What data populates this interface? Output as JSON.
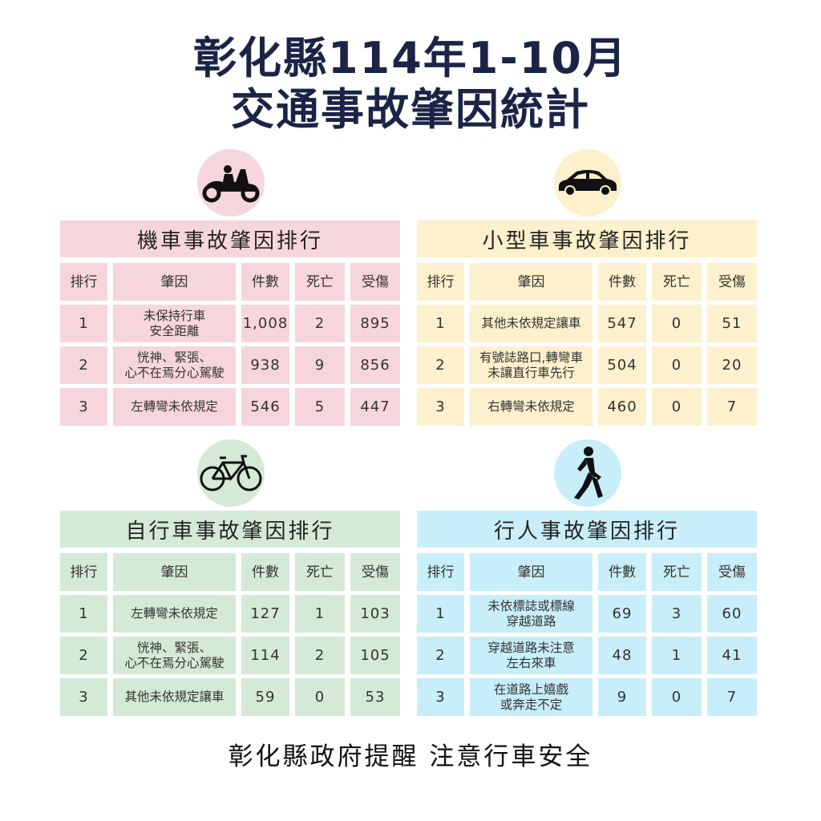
{
  "title": {
    "line1": "彰化縣114年1-10月",
    "line2": "交通事故肇因統計"
  },
  "headers": [
    "排行",
    "肇因",
    "件數",
    "死亡",
    "受傷"
  ],
  "colors": {
    "title": "#1b2447",
    "motorcycle": "#f6d6dc",
    "car": "#fdf0cc",
    "bicycle": "#d4ead6",
    "pedestrian": "#c8eef9"
  },
  "tables": [
    {
      "icon": "motorcycle-icon",
      "title": "機車事故肇因排行",
      "rows": [
        {
          "rank": "1",
          "cause": "未保持行車\n安全距離",
          "count": "1,008",
          "deaths": "2",
          "injuries": "895"
        },
        {
          "rank": "2",
          "cause": "恍神、緊張、\n心不在焉分心駕駛",
          "count": "938",
          "deaths": "9",
          "injuries": "856"
        },
        {
          "rank": "3",
          "cause": "左轉彎未依規定",
          "count": "546",
          "deaths": "5",
          "injuries": "447"
        }
      ]
    },
    {
      "icon": "car-icon",
      "title": "小型車事故肇因排行",
      "rows": [
        {
          "rank": "1",
          "cause": "其他未依規定讓車",
          "count": "547",
          "deaths": "0",
          "injuries": "51"
        },
        {
          "rank": "2",
          "cause": "有號誌路口,轉彎車\n未讓直行車先行",
          "count": "504",
          "deaths": "0",
          "injuries": "20"
        },
        {
          "rank": "3",
          "cause": "右轉彎未依規定",
          "count": "460",
          "deaths": "0",
          "injuries": "7"
        }
      ]
    },
    {
      "icon": "bicycle-icon",
      "title": "自行車事故肇因排行",
      "rows": [
        {
          "rank": "1",
          "cause": "左轉彎未依規定",
          "count": "127",
          "deaths": "1",
          "injuries": "103"
        },
        {
          "rank": "2",
          "cause": "恍神、緊張、\n心不在焉分心駕駛",
          "count": "114",
          "deaths": "2",
          "injuries": "105"
        },
        {
          "rank": "3",
          "cause": "其他未依規定讓車",
          "count": "59",
          "deaths": "0",
          "injuries": "53"
        }
      ]
    },
    {
      "icon": "pedestrian-icon",
      "title": "行人事故肇因排行",
      "rows": [
        {
          "rank": "1",
          "cause": "未依標誌或標線\n穿越道路",
          "count": "69",
          "deaths": "3",
          "injuries": "60"
        },
        {
          "rank": "2",
          "cause": "穿越道路未注意\n左右來車",
          "count": "48",
          "deaths": "1",
          "injuries": "41"
        },
        {
          "rank": "3",
          "cause": "在道路上嬉戲\n或奔走不定",
          "count": "9",
          "deaths": "0",
          "injuries": "7"
        }
      ]
    }
  ],
  "footer": "彰化縣政府提醒 注意行車安全"
}
